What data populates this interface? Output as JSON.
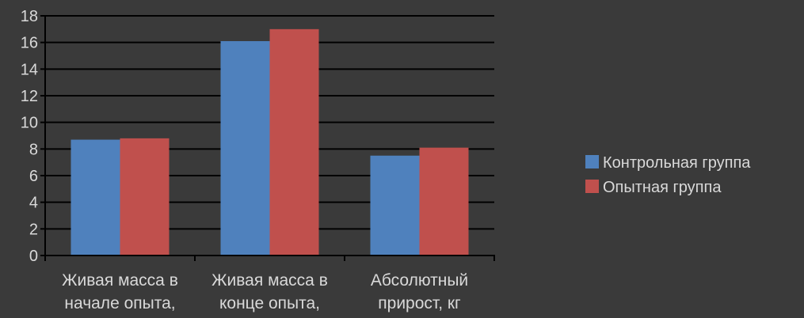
{
  "chart_data": {
    "type": "bar",
    "categories": [
      [
        "Живая масса в",
        "начале опыта,"
      ],
      [
        "Живая масса в",
        "конце опыта,"
      ],
      [
        "Абсолютный",
        "прирост, кг"
      ]
    ],
    "series": [
      {
        "name": "Контрольная группа",
        "values": [
          8.7,
          16.1,
          7.5
        ],
        "color": "#4f81bd"
      },
      {
        "name": "Опытная группа",
        "values": [
          8.8,
          17.0,
          8.1
        ],
        "color": "#c0504d"
      }
    ],
    "ylim": [
      0,
      18
    ],
    "yticks": [
      0,
      2,
      4,
      6,
      8,
      10,
      12,
      14,
      16,
      18
    ],
    "grid": true,
    "legend": "right",
    "colors": {
      "background": "#3a3a3a",
      "text": "#d9d9d9",
      "axis": "#000000",
      "grid": "#000000"
    }
  }
}
